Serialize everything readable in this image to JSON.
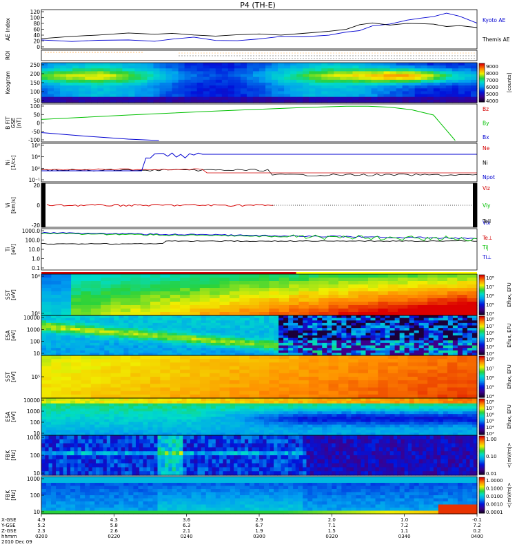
{
  "title": "P4 (TH-E)",
  "colors": {
    "red": "#d40000",
    "green": "#00c000",
    "blue": "#0000d0",
    "black": "#000000",
    "orange": "#ff8800",
    "yellow": "#ffff00"
  },
  "chart_data": [
    {
      "type": "line",
      "panel": "ae",
      "ylabel": "AE Index",
      "yticks": [
        "120",
        "100",
        "80",
        "60",
        "40",
        "20",
        "0"
      ],
      "ylim": [
        0,
        130
      ],
      "legend": [
        "Kyoto AE",
        "Themis AE"
      ],
      "x": [
        0,
        0.07,
        0.13,
        0.2,
        0.26,
        0.3,
        0.35,
        0.4,
        0.45,
        0.5,
        0.55,
        0.6,
        0.66,
        0.7,
        0.73,
        0.76,
        0.8,
        0.84,
        0.87,
        0.9,
        0.93,
        0.96,
        1.0
      ],
      "series": [
        {
          "name": "Kyoto AE",
          "values": [
            27,
            22,
            23,
            25,
            22,
            30,
            34,
            28,
            25,
            30,
            38,
            40,
            45,
            52,
            60,
            75,
            85,
            95,
            105,
            110,
            120,
            108,
            90
          ]
        },
        {
          "name": "Themis AE",
          "values": [
            35,
            37,
            44,
            55,
            45,
            50,
            45,
            42,
            44,
            46,
            48,
            50,
            56,
            65,
            80,
            85,
            82,
            85,
            84,
            80,
            78,
            76,
            74
          ]
        }
      ]
    },
    {
      "type": "scatter",
      "panel": "roi",
      "ylabel": "ROI"
    },
    {
      "type": "heatmap",
      "panel": "keogram",
      "ylabel": "Keogram",
      "yticks": [
        "250",
        "200",
        "150",
        "100",
        "50"
      ],
      "colorbar_ticks": [
        "9000",
        "8000",
        "7000",
        "6000",
        "5000",
        "4000"
      ],
      "colorbar_label": "[counts]"
    },
    {
      "type": "line",
      "panel": "bfit",
      "ylabel": "B FIT",
      "yunit": "[nT]",
      "ysub": "GSE",
      "yticks": [
        "100",
        "50",
        "0",
        "-50",
        "-100"
      ],
      "ylim": [
        -100,
        100
      ],
      "legend": [
        "Bz",
        "By",
        "Bx"
      ],
      "series": [
        {
          "name": "Bz",
          "values": [
            null
          ]
        },
        {
          "name": "By",
          "x": [
            0,
            0.2,
            0.4,
            0.6,
            0.7,
            0.75,
            0.8,
            0.85,
            0.9,
            0.95
          ],
          "values": [
            20,
            45,
            68,
            88,
            95,
            95,
            90,
            75,
            45,
            -100
          ]
        },
        {
          "name": "Bx",
          "x": [
            0,
            0.1,
            0.2,
            0.27
          ],
          "values": [
            -55,
            -75,
            -92,
            -100
          ]
        }
      ]
    },
    {
      "type": "line",
      "panel": "ni",
      "ylabel": "Ni",
      "yunit": "[1/cc]",
      "yticks": [
        "10⁸",
        "10⁴",
        "10²",
        "10⁻¹"
      ],
      "legend": [
        "Ne",
        "Ni",
        "Npot"
      ],
      "series": [
        {
          "name": "Ne"
        },
        {
          "name": "Ni"
        },
        {
          "name": "Npot"
        }
      ]
    },
    {
      "type": "line",
      "panel": "vi",
      "ylabel": "Vi",
      "yunit": "[km/s]",
      "yticks": [
        "20",
        "0",
        "-20"
      ],
      "legend": [
        "Viz",
        "Viy",
        "Vix"
      ]
    },
    {
      "type": "line",
      "panel": "ti",
      "ylabel": "Ti",
      "yunit": "[eV]",
      "yticks": [
        "1000.0",
        "100.0",
        "10.0",
        "1.0",
        "0.1"
      ],
      "legend": [
        "Tell",
        "Te⊥",
        "Ti|",
        "Ti⊥"
      ]
    },
    {
      "type": "heatmap",
      "panel": "sst_e",
      "ylabel": "SST",
      "yunit": "[eV]",
      "yticks": [
        "10⁶",
        "10⁵"
      ],
      "colorbar_ticks": [
        "10⁸",
        "10⁷",
        "10⁶",
        "10⁵",
        "10⁴"
      ],
      "colorbar_label": "Eflux, EFU"
    },
    {
      "type": "heatmap",
      "panel": "esa_e",
      "ylabel": "ESA",
      "yunit": "[eV]",
      "yticks": [
        "10000",
        "1000",
        "100",
        "10"
      ],
      "colorbar_ticks": [
        "10⁸",
        "10⁷",
        "10⁶",
        "10⁵",
        "10⁴",
        "10³"
      ],
      "colorbar_label": "Eflux, EFU"
    },
    {
      "type": "heatmap",
      "panel": "sst_i",
      "ylabel": "SST",
      "yunit": "[eV]",
      "yticks": [
        "10⁵"
      ],
      "colorbar_ticks": [
        "10⁸",
        "10⁷",
        "10⁶",
        "10⁵",
        "10⁴"
      ],
      "colorbar_label": "Eflux, EFU"
    },
    {
      "type": "heatmap",
      "panel": "esa_i",
      "ylabel": "ESA",
      "yunit": "[eV]",
      "yticks": [
        "10000",
        "1000",
        "100",
        "10"
      ],
      "colorbar_ticks": [
        "10⁸",
        "10⁷",
        "10⁶",
        "10⁵",
        "10⁴",
        "10³"
      ],
      "colorbar_label": "Eflux, EFU"
    },
    {
      "type": "heatmap",
      "panel": "fbk_e",
      "ylabel": "FBK",
      "yunit": "[Hz]",
      "yticks": [
        "1000",
        "100",
        "10"
      ],
      "colorbar_ticks": [
        "1.00",
        "0.10",
        "0.01"
      ],
      "colorbar_label": "<|mV/m|>"
    },
    {
      "type": "heatmap",
      "panel": "fbk_b",
      "ylabel": "FBK",
      "yunit": "[Hz]",
      "yticks": [
        "1000",
        "100",
        "10"
      ],
      "colorbar_ticks": [
        "1.0000",
        "0.1000",
        "0.0100",
        "0.0010",
        "0.0001"
      ],
      "colorbar_label": "<|mV/m|>"
    }
  ],
  "time_axis": {
    "row_labels": [
      "X-GSE",
      "Y-GSE",
      "Z-GSE",
      "hhmm",
      "2010 Dec 09"
    ],
    "columns": [
      {
        "x": "4.9",
        "y": "5.2",
        "z": "2.3",
        "t": "0200"
      },
      {
        "x": "4.3",
        "y": "5.8",
        "z": "2.6",
        "t": "0220"
      },
      {
        "x": "3.6",
        "y": "6.3",
        "z": "2.1",
        "t": "0240"
      },
      {
        "x": "2.9",
        "y": "6.7",
        "z": "1.9",
        "t": "0300"
      },
      {
        "x": "2.0",
        "y": "7.1",
        "z": "1.5",
        "t": "0320"
      },
      {
        "x": "1.0",
        "y": "7.2",
        "z": "1.1",
        "t": "0340"
      },
      {
        "x": "-0.1",
        "y": "7.2",
        "z": "0.2",
        "t": "0400"
      }
    ]
  }
}
